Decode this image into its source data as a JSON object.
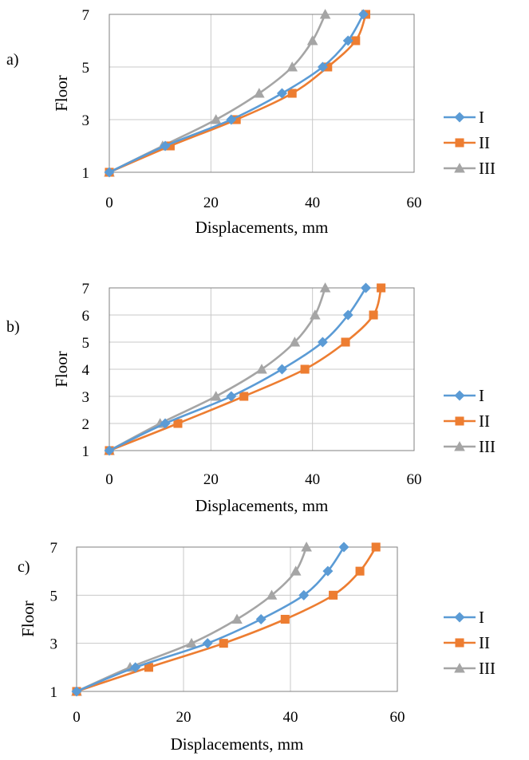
{
  "colors": {
    "I": "#5b9bd5",
    "II": "#ed7d31",
    "III": "#a5a5a5",
    "grid": "#c8c8c8",
    "frame": "#808080"
  },
  "chart_data": [
    {
      "type": "line",
      "panel_label": "a)",
      "xlabel": "Displacements, mm",
      "ylabel": "Floor",
      "xlim": [
        0,
        60
      ],
      "ylim": [
        1,
        7
      ],
      "x_ticks": [
        "0",
        "20",
        "40",
        "60"
      ],
      "y_ticks": [
        "1",
        "3",
        "5",
        "7"
      ],
      "grid": true,
      "legend_placement": "right",
      "series": [
        {
          "name": "I",
          "marker": "diamond",
          "x": [
            0,
            11,
            24,
            34,
            42,
            47,
            50
          ],
          "y": [
            1,
            2,
            3,
            4,
            5,
            6,
            7
          ]
        },
        {
          "name": "II",
          "marker": "square",
          "x": [
            0,
            12,
            25,
            36,
            43,
            48.5,
            50.5
          ],
          "y": [
            1,
            2,
            3,
            4,
            5,
            6,
            7
          ]
        },
        {
          "name": "III",
          "marker": "triangle",
          "x": [
            0,
            10.5,
            21,
            29.5,
            36,
            40,
            42.5
          ],
          "y": [
            1,
            2,
            3,
            4,
            5,
            6,
            7
          ]
        }
      ]
    },
    {
      "type": "line",
      "panel_label": "b)",
      "xlabel": "Displacements, mm",
      "ylabel": "Floor",
      "xlim": [
        0,
        60
      ],
      "ylim": [
        1,
        7
      ],
      "x_ticks": [
        "0",
        "20",
        "40",
        "60"
      ],
      "y_ticks": [
        "1",
        "2",
        "3",
        "4",
        "5",
        "6",
        "7"
      ],
      "grid": true,
      "legend_placement": "right",
      "series": [
        {
          "name": "I",
          "marker": "diamond",
          "x": [
            0,
            11,
            24,
            34,
            42,
            47,
            50.5
          ],
          "y": [
            1,
            2,
            3,
            4,
            5,
            6,
            7
          ]
        },
        {
          "name": "II",
          "marker": "square",
          "x": [
            0,
            13.5,
            26.5,
            38.5,
            46.5,
            52,
            53.5
          ],
          "y": [
            1,
            2,
            3,
            4,
            5,
            6,
            7
          ]
        },
        {
          "name": "III",
          "marker": "triangle",
          "x": [
            0,
            10,
            21,
            30,
            36.5,
            40.5,
            42.5
          ],
          "y": [
            1,
            2,
            3,
            4,
            5,
            6,
            7
          ]
        }
      ]
    },
    {
      "type": "line",
      "panel_label": "c)",
      "xlabel": "Displacements, mm",
      "ylabel": "Floor",
      "xlim": [
        0,
        60
      ],
      "ylim": [
        1,
        7
      ],
      "x_ticks": [
        "0",
        "20",
        "40",
        "60"
      ],
      "y_ticks": [
        "1",
        "3",
        "5",
        "7"
      ],
      "grid": true,
      "legend_placement": "right",
      "series": [
        {
          "name": "I",
          "marker": "diamond",
          "x": [
            0,
            11,
            24.5,
            34.5,
            42.5,
            47,
            50
          ],
          "y": [
            1,
            2,
            3,
            4,
            5,
            6,
            7
          ]
        },
        {
          "name": "II",
          "marker": "square",
          "x": [
            0,
            13.5,
            27.5,
            39,
            48,
            53,
            56
          ],
          "y": [
            1,
            2,
            3,
            4,
            5,
            6,
            7
          ]
        },
        {
          "name": "III",
          "marker": "triangle",
          "x": [
            0,
            10,
            21.5,
            30,
            36.5,
            41,
            43
          ],
          "y": [
            1,
            2,
            3,
            4,
            5,
            6,
            7
          ]
        }
      ]
    }
  ]
}
